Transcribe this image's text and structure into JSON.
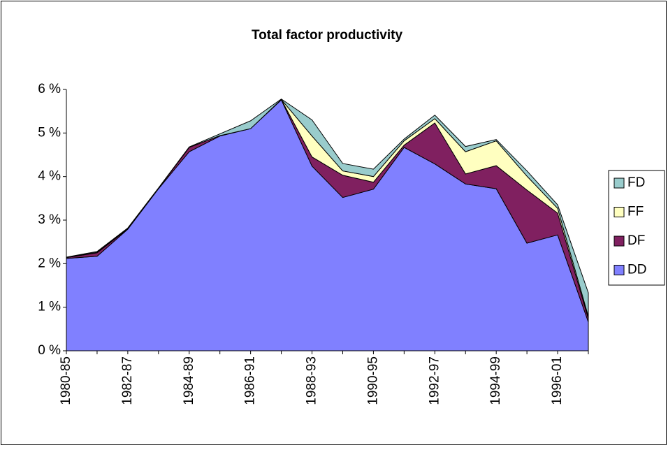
{
  "chart_data": {
    "type": "stacked_area",
    "title": "Total factor productivity",
    "categories": [
      "1980-85",
      null,
      "1982-87",
      null,
      "1984-89",
      null,
      "1986-91",
      null,
      "1988-93",
      null,
      "1990-95",
      null,
      "1992-97",
      null,
      "1994-99",
      null,
      "1996-01",
      null
    ],
    "series": [
      {
        "name": "DD",
        "color": "#8080ff",
        "values": [
          2.12,
          2.17,
          2.79,
          3.72,
          4.57,
          4.93,
          5.1,
          5.76,
          4.24,
          3.52,
          3.71,
          4.67,
          4.29,
          3.83,
          3.72,
          2.47,
          2.66,
          0.66
        ]
      },
      {
        "name": "DF",
        "color": "#802060",
        "values": [
          0.02,
          0.08,
          0.01,
          0.01,
          0.1,
          0.01,
          0,
          0.01,
          0.21,
          0.51,
          0.16,
          0.05,
          0.94,
          0.23,
          0.53,
          1.22,
          0.5,
          0.08
        ]
      },
      {
        "name": "FF",
        "color": "#ffffc0",
        "values": [
          0,
          0.01,
          0,
          0,
          0,
          0,
          0,
          0,
          0.48,
          0.1,
          0.13,
          0.1,
          0.1,
          0.51,
          0.57,
          0.32,
          0.11,
          0.05
        ]
      },
      {
        "name": "FD",
        "color": "#99cccc",
        "values": [
          0.01,
          0.02,
          0.02,
          0.01,
          0.01,
          0.04,
          0.18,
          0.01,
          0.37,
          0.17,
          0.17,
          0.04,
          0.08,
          0.12,
          0.03,
          0.12,
          0.08,
          0.54
        ]
      }
    ],
    "ylim": [
      0,
      6
    ],
    "yticks": [
      {
        "value": 0,
        "label": "0 %"
      },
      {
        "value": 1,
        "label": "1 %"
      },
      {
        "value": 2,
        "label": "2 %"
      },
      {
        "value": 3,
        "label": "3 %"
      },
      {
        "value": 4,
        "label": "4 %"
      },
      {
        "value": 5,
        "label": "5 %"
      },
      {
        "value": 6,
        "label": "6 %"
      }
    ],
    "legend": "right"
  }
}
